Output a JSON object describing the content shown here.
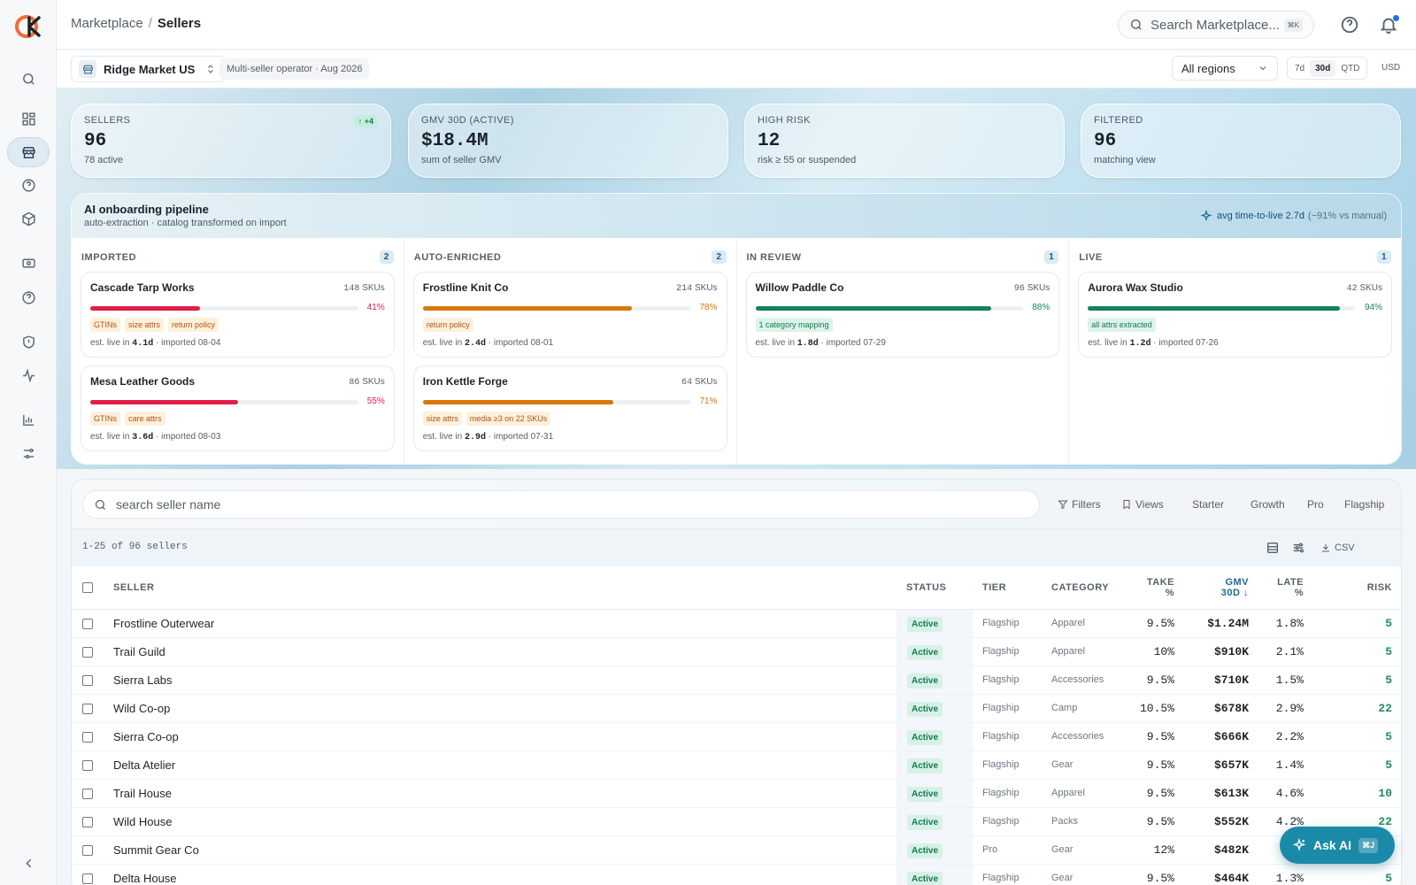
{
  "breadcrumb": {
    "parent": "Marketplace",
    "separator": "/",
    "current": "Sellers"
  },
  "search": {
    "placeholder": "Search Marketplace...",
    "shortcut": "⌘K"
  },
  "workspace": {
    "name": "Ridge Market US",
    "operator": "Multi-seller operator · Aug 2026"
  },
  "region": {
    "selected": "All regions"
  },
  "date_range": {
    "options": [
      "7d",
      "30d",
      "QTD"
    ],
    "selected": "30d",
    "currency": "USD"
  },
  "stats": [
    {
      "label": "SELLERS",
      "value": "96",
      "sub": "78 active",
      "delta": "↑ +4"
    },
    {
      "label": "GMV 30D (ACTIVE)",
      "value": "$18.4M",
      "sub": "sum of seller GMV"
    },
    {
      "label": "HIGH RISK",
      "value": "12",
      "sub": "risk ≥ 55 or suspended"
    },
    {
      "label": "FILTERED",
      "value": "96",
      "sub": "matching view"
    }
  ],
  "pipeline": {
    "title": "AI onboarding pipeline",
    "subtitle": "auto-extraction · catalog transformed on import",
    "avg": "avg time-to-live 2.7d",
    "avg_note": "(−91% vs manual)",
    "columns": [
      {
        "label": "IMPORTED",
        "count": "2",
        "cards": [
          {
            "name": "Cascade Tarp Works",
            "skus": "148",
            "pct": "41%",
            "progress": 0.41,
            "tags": [
              "GTINs",
              "size attrs",
              "return policy"
            ],
            "est": "4.1d",
            "imported": "· imported 08-04"
          },
          {
            "name": "Mesa Leather Goods",
            "skus": "86",
            "pct": "55%",
            "progress": 0.55,
            "tags": [
              "GTINs",
              "care attrs"
            ],
            "est": "3.6d",
            "imported": "· imported 08-03"
          }
        ]
      },
      {
        "label": "AUTO-ENRICHED",
        "count": "2",
        "cards": [
          {
            "name": "Frostline Knit Co",
            "skus": "214",
            "pct": "78%",
            "progress": 0.78,
            "tags": [
              "return policy"
            ],
            "est": "2.4d",
            "imported": "· imported 08-01"
          },
          {
            "name": "Iron Kettle Forge",
            "skus": "64",
            "pct": "71%",
            "progress": 0.71,
            "tags": [
              "size attrs",
              "media ≥3 on 22 SKUs"
            ],
            "est": "2.9d",
            "imported": "· imported 07-31"
          }
        ]
      },
      {
        "label": "IN REVIEW",
        "count": "1",
        "cards": [
          {
            "name": "Willow Paddle Co",
            "skus": "96",
            "pct": "88%",
            "progress": 0.88,
            "tags": [
              "1 category mapping"
            ],
            "est": "1.8d",
            "imported": "· imported 07-29"
          }
        ]
      },
      {
        "label": "LIVE",
        "count": "1",
        "cards": [
          {
            "name": "Aurora Wax Studio",
            "skus": "42",
            "pct": "94%",
            "progress": 0.94,
            "tags": [
              "all attrs extracted"
            ],
            "est": "1.2d",
            "imported": "· imported 07-26"
          }
        ]
      }
    ],
    "skus_label": "SKUs",
    "est_prefix": "est. live in"
  },
  "table_tools": {
    "search_placeholder": "search seller name",
    "filters": "Filters",
    "views": "Views",
    "tiers": [
      "Starter",
      "Growth",
      "Pro",
      "Flagship"
    ],
    "range_label": "1-25 of 96 sellers",
    "csv": "CSV"
  },
  "table": {
    "headers": {
      "seller": "SELLER",
      "status": "STATUS",
      "tier": "TIER",
      "category": "CATEGORY",
      "take1": "TAKE",
      "take2": "%",
      "gmv1": "GMV",
      "gmv2": "30D",
      "late1": "LATE",
      "late2": "%",
      "risk": "RISK"
    },
    "rows": [
      {
        "seller": "Frostline Outerwear",
        "status": "Active",
        "tier": "Flagship",
        "category": "Apparel",
        "take": "9.5%",
        "gmv": "$1.24M",
        "late": "1.8%",
        "risk": "5"
      },
      {
        "seller": "Trail Guild",
        "status": "Active",
        "tier": "Flagship",
        "category": "Apparel",
        "take": "10%",
        "gmv": "$910K",
        "late": "2.1%",
        "risk": "5"
      },
      {
        "seller": "Sierra Labs",
        "status": "Active",
        "tier": "Flagship",
        "category": "Accessories",
        "take": "9.5%",
        "gmv": "$710K",
        "late": "1.5%",
        "risk": "5"
      },
      {
        "seller": "Wild Co-op",
        "status": "Active",
        "tier": "Flagship",
        "category": "Camp",
        "take": "10.5%",
        "gmv": "$678K",
        "late": "2.9%",
        "risk": "22"
      },
      {
        "seller": "Sierra Co-op",
        "status": "Active",
        "tier": "Flagship",
        "category": "Accessories",
        "take": "9.5%",
        "gmv": "$666K",
        "late": "2.2%",
        "risk": "5"
      },
      {
        "seller": "Delta Atelier",
        "status": "Active",
        "tier": "Flagship",
        "category": "Gear",
        "take": "9.5%",
        "gmv": "$657K",
        "late": "1.4%",
        "risk": "5"
      },
      {
        "seller": "Trail House",
        "status": "Active",
        "tier": "Flagship",
        "category": "Apparel",
        "take": "9.5%",
        "gmv": "$613K",
        "late": "4.6%",
        "risk": "10"
      },
      {
        "seller": "Wild House",
        "status": "Active",
        "tier": "Flagship",
        "category": "Packs",
        "take": "9.5%",
        "gmv": "$552K",
        "late": "4.2%",
        "risk": "22"
      },
      {
        "seller": "Summit Gear Co",
        "status": "Active",
        "tier": "Pro",
        "category": "Gear",
        "take": "12%",
        "gmv": "$482K",
        "late": "",
        "risk": ""
      },
      {
        "seller": "Delta House",
        "status": "Active",
        "tier": "Flagship",
        "category": "Gear",
        "take": "9.5%",
        "gmv": "$464K",
        "late": "1.3%",
        "risk": "5"
      }
    ]
  },
  "ask_ai": {
    "label": "Ask AI",
    "shortcut": "⌘J"
  },
  "colors": {
    "danger": "#e11d48",
    "warning": "#d97706",
    "success": "#16835a",
    "accent": "#1b8aa8"
  },
  "icons": [
    "logo-icon",
    "search-icon",
    "dashboard-icon",
    "store-icon",
    "help-icon",
    "package-icon",
    "banknote-icon",
    "shield-icon",
    "activity-icon",
    "bar-chart-icon",
    "sliders-icon",
    "collapse-icon",
    "bell-icon",
    "sparkle-icon",
    "filter-icon",
    "bookmark-icon",
    "download-icon"
  ]
}
